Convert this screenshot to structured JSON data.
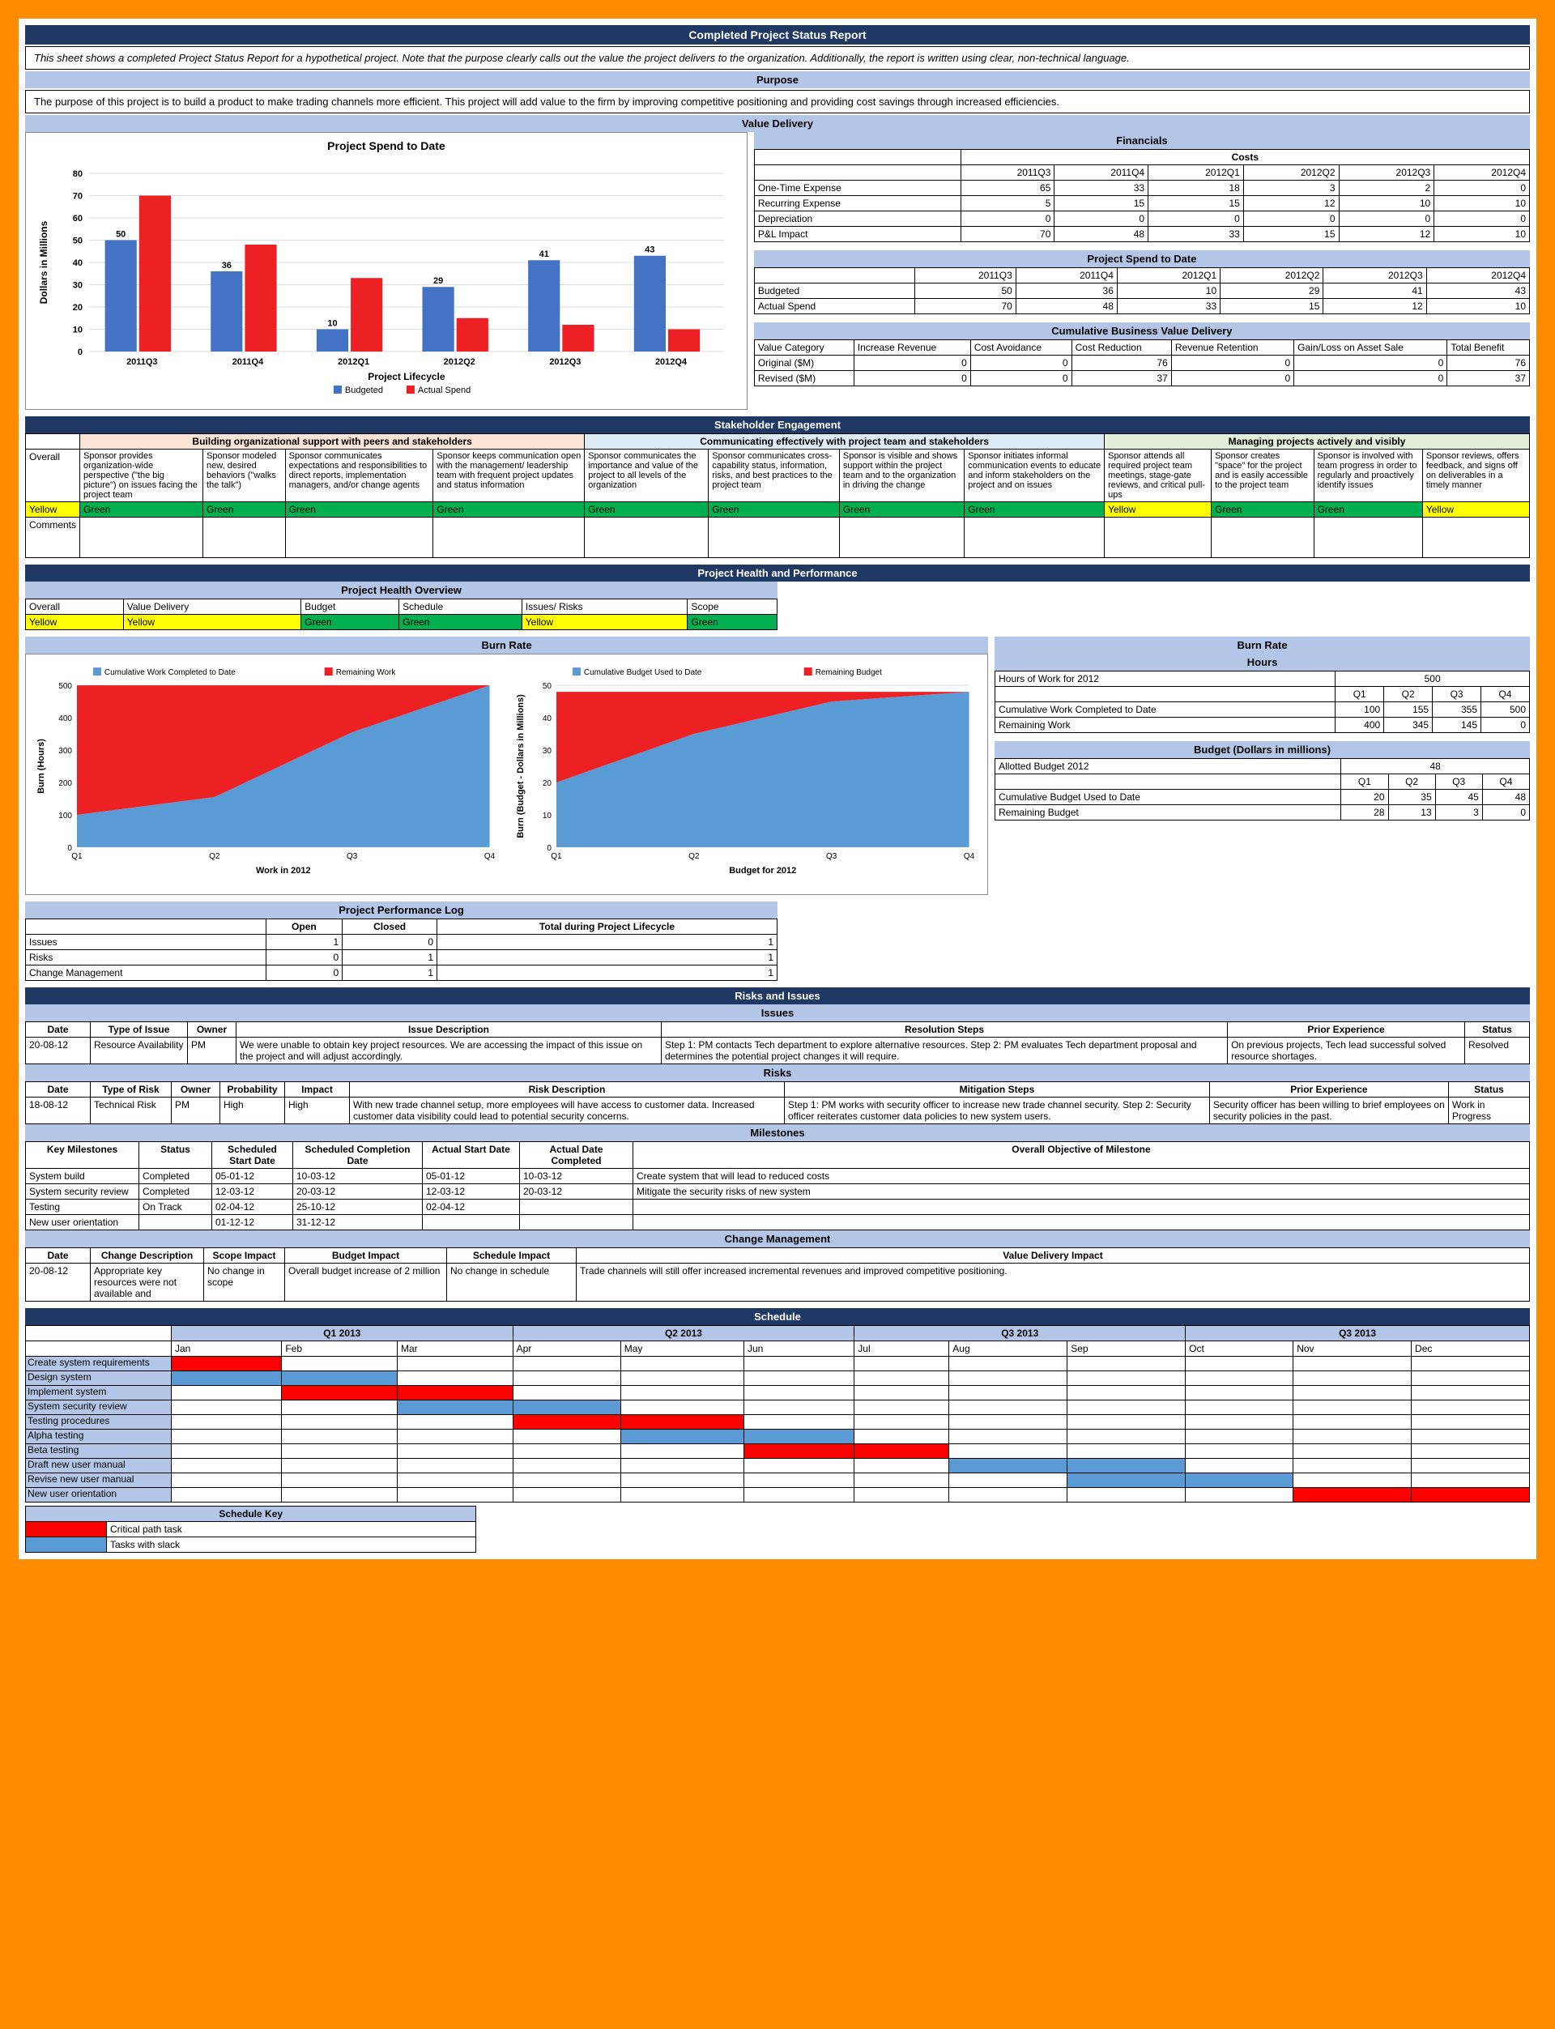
{
  "title": "Completed Project Status Report",
  "intro": "This sheet shows a completed Project Status Report for a hypothetical project. Note that the purpose clearly calls out the value the project delivers to the organization. Additionally, the report is written using clear, non-technical language.",
  "purpose_header": "Purpose",
  "purpose": "The purpose of this project is to build a product to make trading channels more efficient. This project will add value to the firm by improving competitive positioning and providing cost savings through increased efficiencies.",
  "value_header": "Value Delivery",
  "spend_chart": {
    "title": "Project Spend to Date",
    "ylabel": "Dollars in Millions",
    "xlabel": "Project Lifecycle",
    "categories": [
      "2011Q3",
      "2011Q4",
      "2012Q1",
      "2012Q2",
      "2012Q3",
      "2012Q4"
    ],
    "budgeted": [
      50,
      36,
      10,
      29,
      41,
      43
    ],
    "actual": [
      70,
      48,
      33,
      15,
      12,
      10
    ],
    "ylim": [
      0,
      80
    ],
    "ytick": 10,
    "budget_color": "#4472c4",
    "actual_color": "#ed2024",
    "legend": [
      "Budgeted",
      "Actual Spend"
    ]
  },
  "financials": {
    "title": "Financials",
    "costs_header": "Costs",
    "cols": [
      "2011Q3",
      "2011Q4",
      "2012Q1",
      "2012Q2",
      "2012Q3",
      "2012Q4"
    ],
    "rows": [
      {
        "label": "One-Time Expense",
        "vals": [
          65,
          33,
          18,
          3,
          2,
          0
        ]
      },
      {
        "label": "Recurring Expense",
        "vals": [
          5,
          15,
          15,
          12,
          10,
          10
        ]
      },
      {
        "label": "Depreciation",
        "vals": [
          0,
          0,
          0,
          0,
          0,
          0
        ]
      },
      {
        "label": "P&L Impact",
        "vals": [
          70,
          48,
          33,
          15,
          12,
          10
        ]
      }
    ]
  },
  "spend_table": {
    "title": "Project Spend to Date",
    "cols": [
      "2011Q3",
      "2011Q4",
      "2012Q1",
      "2012Q2",
      "2012Q3",
      "2012Q4"
    ],
    "rows": [
      {
        "label": "Budgeted",
        "vals": [
          50,
          36,
          10,
          29,
          41,
          43
        ]
      },
      {
        "label": "Actual Spend",
        "vals": [
          70,
          48,
          33,
          15,
          12,
          10
        ]
      }
    ]
  },
  "cumulative": {
    "title": "Cumulative Business Value Delivery",
    "cols": [
      "Value Category",
      "Increase Revenue",
      "Cost Avoidance",
      "Cost Reduction",
      "Revenue Retention",
      "Gain/Loss on Asset Sale",
      "Total Benefit"
    ],
    "rows": [
      {
        "label": "Original ($M)",
        "vals": [
          0,
          0,
          76,
          0,
          0,
          76
        ]
      },
      {
        "label": "Revised ($M)",
        "vals": [
          0,
          0,
          37,
          0,
          0,
          37
        ]
      }
    ]
  },
  "stakeholder": {
    "header": "Stakeholder Engagement",
    "groups": [
      {
        "title": "Building organizational support with peers and stakeholders",
        "cls": "pink-bg",
        "cells": [
          "Sponsor provides organization-wide perspective (\"the big picture\") on issues facing the project team",
          "Sponsor modeled new, desired behaviors (\"walks the talk\")",
          "Sponsor communicates expectations and responsibilities to direct reports, implementation managers, and/or change agents",
          "Sponsor keeps communication open with the management/ leadership team with frequent project updates and status information"
        ],
        "status": [
          "Green",
          "Green",
          "Green",
          "Green"
        ]
      },
      {
        "title": "Communicating effectively with project team and stakeholders",
        "cls": "ltblue-bg",
        "cells": [
          "Sponsor communicates the importance and value of the project to all levels of the organization",
          "Sponsor communicates cross-capability status, information, risks, and best practices to the project team",
          "Sponsor is visible and shows support within the project team and to the organization in driving the change",
          "Sponsor initiates informal communication events to educate and inform stakeholders on the project and on issues"
        ],
        "status": [
          "Green",
          "Green",
          "Green",
          "Green"
        ]
      },
      {
        "title": "Managing projects actively and visibly",
        "cls": "ltgreen-bg",
        "cells": [
          "Sponsor attends all required project team meetings, stage-gate reviews, and critical pull-ups",
          "Sponsor creates \"space\" for the project and is easily accessible to the project team",
          "Sponsor is involved with team progress in order to regularly and proactively identify issues",
          "Sponsor reviews, offers feedback, and signs off on deliverables in a timely manner"
        ],
        "status": [
          "Yellow",
          "Green",
          "Green",
          "Yellow"
        ]
      }
    ],
    "overall": "Overall",
    "overall_status": "Yellow",
    "comments": "Comments"
  },
  "php": {
    "header": "Project Health and Performance",
    "overview": "Project Health Overview",
    "cols": [
      "Overall",
      "Value Delivery",
      "Budget",
      "Schedule",
      "Issues/ Risks",
      "Scope"
    ],
    "vals": [
      "Yellow",
      "Yellow",
      "Green",
      "Green",
      "Yellow",
      "Green"
    ]
  },
  "burn": {
    "title": "Burn Rate",
    "chart1": {
      "title": "",
      "legend": [
        "Cumulative Work Completed to Date",
        "Remaining Work"
      ],
      "ylabel": "Burn (Hours)",
      "xlabel": "Work in 2012",
      "cats": [
        "Q1",
        "Q2",
        "Q3",
        "Q4"
      ],
      "work": [
        100,
        155,
        355,
        500
      ],
      "remain": [
        400,
        345,
        145,
        0
      ],
      "ylim": [
        0,
        500
      ],
      "ytick": 100,
      "c1": "#5b9bd5",
      "c2": "#ed2024"
    },
    "chart2": {
      "title": "",
      "legend": [
        "Cumulative Budget Used to Date",
        "Remaining Budget"
      ],
      "ylabel": "Burn (Budget - Dollars in Millions)",
      "xlabel": "Budget for 2012",
      "cats": [
        "Q1",
        "Q2",
        "Q3",
        "Q4"
      ],
      "used": [
        20,
        35,
        45,
        48
      ],
      "remain": [
        28,
        13,
        3,
        0
      ],
      "ylim": [
        0,
        50
      ],
      "ytick": 10,
      "c1": "#5b9bd5",
      "c2": "#ed2024"
    },
    "hours": {
      "title": "Hours",
      "row1": "Hours of Work for 2012",
      "val1": 500,
      "cols": [
        "Q1",
        "Q2",
        "Q3",
        "Q4"
      ],
      "r2": "Cumulative Work Completed to Date",
      "v2": [
        100,
        155,
        355,
        500
      ],
      "r3": "Remaining Work",
      "v3": [
        400,
        345,
        145,
        0
      ]
    },
    "budget": {
      "title": "Budget (Dollars in millions)",
      "row1": "Allotted Budget 2012",
      "val1": 48,
      "cols": [
        "Q1",
        "Q2",
        "Q3",
        "Q4"
      ],
      "r2": "Cumulative Budget Used to Date",
      "v2": [
        20,
        35,
        45,
        48
      ],
      "r3": "Remaining Budget",
      "v3": [
        28,
        13,
        3,
        0
      ]
    }
  },
  "perflog": {
    "title": "Project Performance Log",
    "cols": [
      "",
      "Open",
      "Closed",
      "Total during Project Lifecycle"
    ],
    "rows": [
      [
        "Issues",
        "1",
        "0",
        "1"
      ],
      [
        "Risks",
        "0",
        "1",
        "1"
      ],
      [
        "Change Management",
        "0",
        "1",
        "1"
      ]
    ]
  },
  "ri": {
    "header": "Risks and Issues",
    "issues": {
      "title": "Issues",
      "cols": [
        "Date",
        "Type of Issue",
        "Owner",
        "Issue Description",
        "Resolution Steps",
        "Prior Experience",
        "Status"
      ],
      "rows": [
        [
          "20-08-12",
          "Resource Availability",
          "PM",
          "We were unable to obtain key project resources. We are accessing the impact of this issue on the project and will adjust accordingly.",
          "Step 1: PM contacts Tech department to explore alternative resources. Step 2: PM evaluates Tech department proposal and determines the potential project changes it will require.",
          "On previous projects, Tech lead successful solved resource shortages.",
          "Resolved"
        ]
      ]
    },
    "risks": {
      "title": "Risks",
      "cols": [
        "Date",
        "Type of Risk",
        "Owner",
        "Probability",
        "Impact",
        "Risk Description",
        "Mitigation Steps",
        "Prior Experience",
        "Status"
      ],
      "rows": [
        [
          "18-08-12",
          "Technical Risk",
          "PM",
          "High",
          "High",
          "With new trade channel setup, more employees will have access to customer data. Increased customer data visibility could lead to potential security concerns.",
          "Step 1: PM works with security officer to increase new trade channel security. Step 2: Security officer reiterates customer data policies to new system users.",
          "Security officer has been willing to brief employees on security policies in the past.",
          "Work in Progress"
        ]
      ]
    },
    "milestones": {
      "title": "Milestones",
      "cols": [
        "Key Milestones",
        "Status",
        "Scheduled Start Date",
        "Scheduled Completion Date",
        "Actual Start Date",
        "Actual Date Completed",
        "Overall Objective of Milestone"
      ],
      "rows": [
        [
          "System build",
          "Completed",
          "05-01-12",
          "10-03-12",
          "05-01-12",
          "10-03-12",
          "Create system that will lead to reduced costs"
        ],
        [
          "System security review",
          "Completed",
          "12-03-12",
          "20-03-12",
          "12-03-12",
          "20-03-12",
          "Mitigate the security risks of new system"
        ],
        [
          "Testing",
          "On Track",
          "02-04-12",
          "25-10-12",
          "02-04-12",
          "",
          ""
        ],
        [
          "New user orientation",
          "",
          "01-12-12",
          "31-12-12",
          "",
          "",
          ""
        ]
      ]
    },
    "change": {
      "title": "Change Management",
      "cols": [
        "Date",
        "Change Description",
        "Scope Impact",
        "Budget Impact",
        "Schedule Impact",
        "Value Delivery Impact"
      ],
      "rows": [
        [
          "20-08-12",
          "Appropriate key resources were not available and",
          "No change in scope",
          "Overall budget increase of 2 million",
          "No change in schedule",
          "Trade channels will still offer increased incremental revenues and improved competitive positioning."
        ]
      ]
    }
  },
  "schedule": {
    "header": "Schedule",
    "quarters": [
      "Q1 2013",
      "Q2 2013",
      "Q3 2013",
      "Q3 2013"
    ],
    "months": [
      "Jan",
      "Feb",
      "Mar",
      "Apr",
      "May",
      "Jun",
      "Jul",
      "Aug",
      "Sep",
      "Oct",
      "Nov",
      "Dec"
    ],
    "tasks": [
      {
        "name": "Create system requirements",
        "start": 0,
        "span": 1,
        "type": "red"
      },
      {
        "name": "Design system",
        "start": 0,
        "span": 2,
        "type": "blue"
      },
      {
        "name": "Implement system",
        "start": 1,
        "span": 2,
        "type": "red"
      },
      {
        "name": "System security review",
        "start": 2,
        "span": 2,
        "type": "blue"
      },
      {
        "name": "Testing procedures",
        "start": 3,
        "span": 2,
        "type": "red"
      },
      {
        "name": "Alpha testing",
        "start": 4,
        "span": 2,
        "type": "blue"
      },
      {
        "name": "Beta testing",
        "start": 5,
        "span": 2,
        "type": "red"
      },
      {
        "name": "Draft new user manual",
        "start": 7,
        "span": 2,
        "type": "blue"
      },
      {
        "name": "Revise new user manual",
        "start": 8,
        "span": 2,
        "type": "blue"
      },
      {
        "name": "New user orientation",
        "start": 10,
        "span": 2,
        "type": "red"
      }
    ],
    "key": {
      "title": "Schedule Key",
      "red": "Critical path task",
      "blue": "Tasks with slack"
    }
  }
}
